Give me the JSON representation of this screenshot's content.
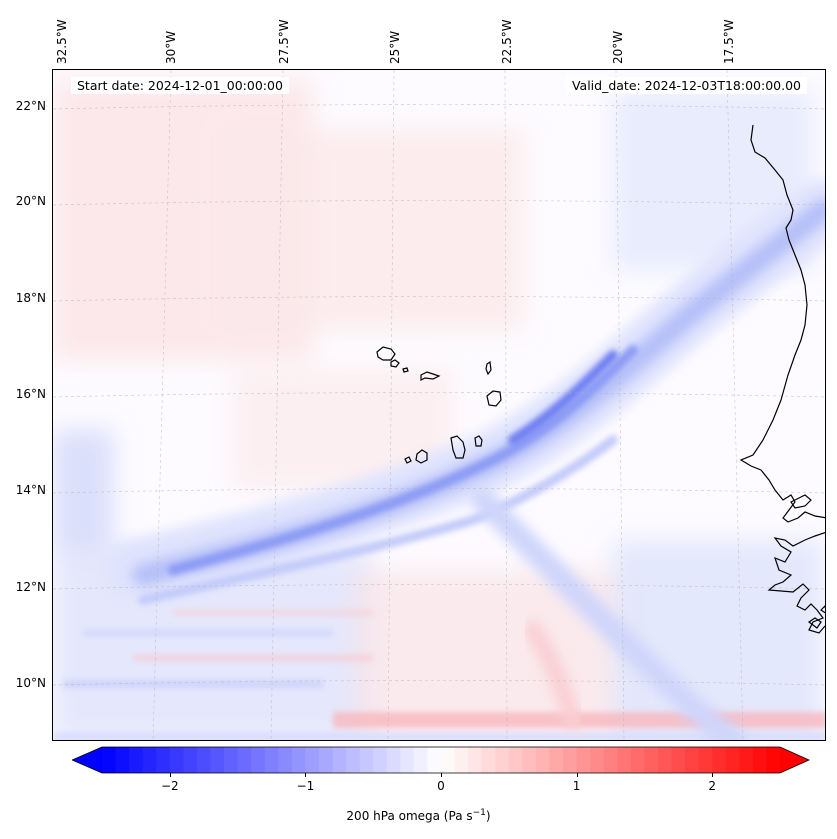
{
  "map": {
    "start_date": "Start date: 2024-12-01_00:00:00",
    "valid_date": "Valid_date: 2024-12-03T18:00:00.00",
    "lon_labels": [
      "32.5°W",
      "30°W",
      "27.5°W",
      "25°W",
      "22.5°W",
      "20°W",
      "17.5°W"
    ],
    "lat_labels": [
      "22°N",
      "20°N",
      "18°N",
      "16°N",
      "14°N",
      "12°N",
      "10°N"
    ],
    "variable": "200 hPa omega (Pa s",
    "unit_superscript": "−1",
    "unit_close": ")",
    "colorbar": {
      "ticks": [
        "−2",
        "−1",
        "0",
        "1",
        "2"
      ],
      "tick_values": [
        -2,
        -1,
        0,
        1,
        2
      ],
      "range": [
        -2.5,
        2.5
      ],
      "cmap": "bwr",
      "extend": "both",
      "min_color": "#0000ff",
      "max_color": "#ff0000"
    },
    "coastline_color": "#000000",
    "gridline_color": "#b0b0b0"
  }
}
